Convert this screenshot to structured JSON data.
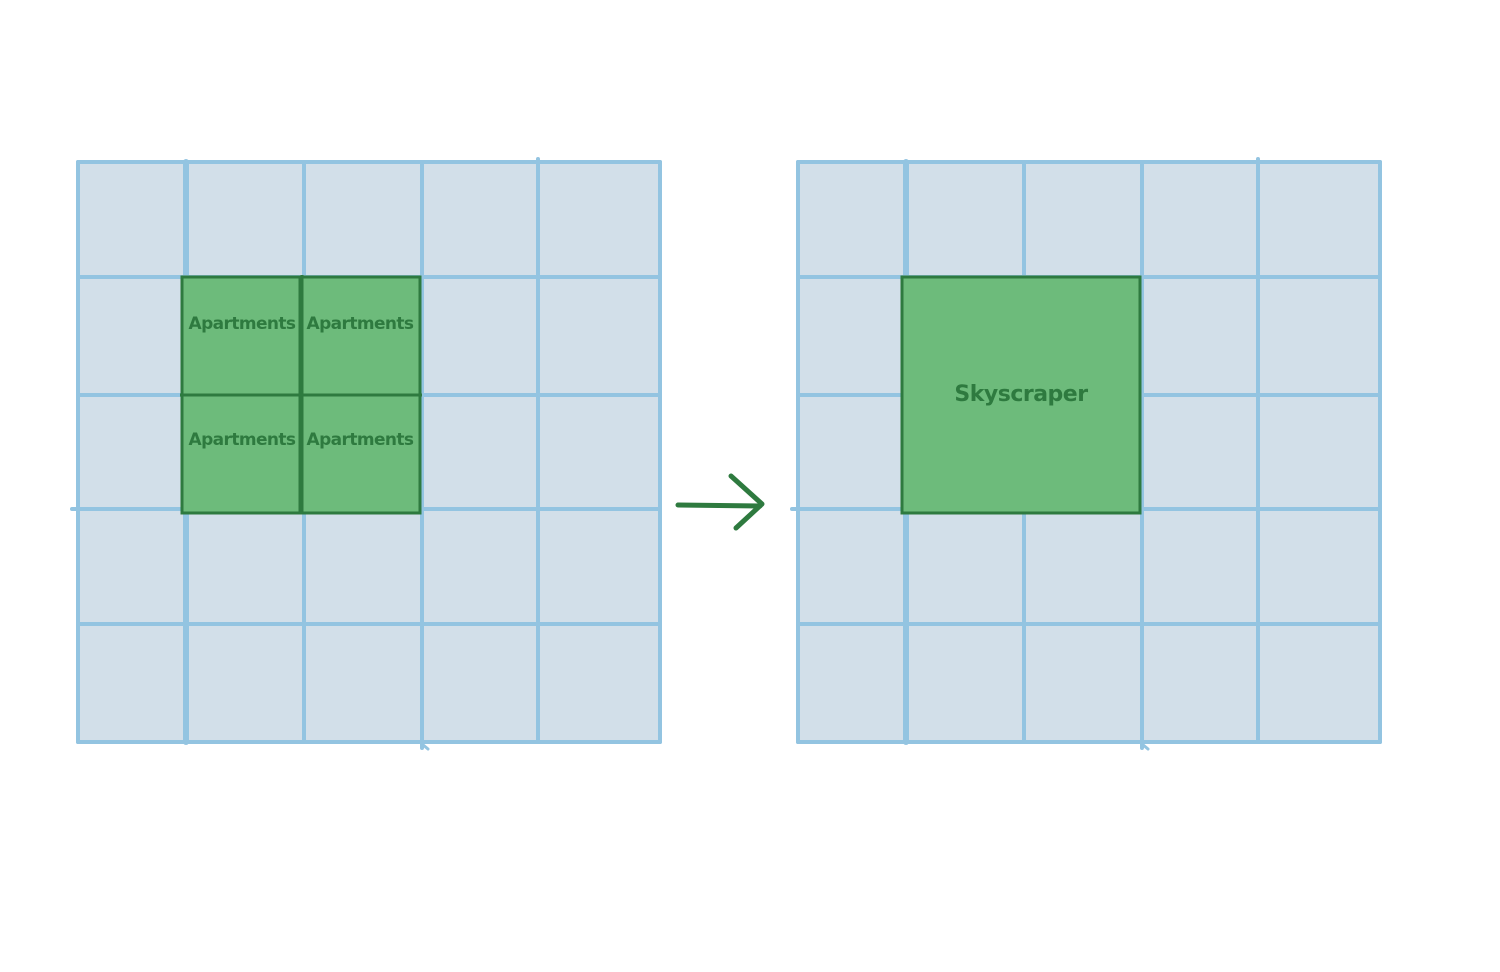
{
  "colors": {
    "grid_fill": "#d2dfe9",
    "grid_line": "#93c4e1",
    "building_fill": "#6dbb7b",
    "building_stroke": "#2e7a3f",
    "label": "#2e7a3f",
    "arrow": "#2e7a3f"
  },
  "before": {
    "grid": {
      "rows": 5,
      "cols": 5
    },
    "buildings": [
      {
        "label": "Apartments",
        "row": 1,
        "col": 1,
        "rowspan": 1,
        "colspan": 1
      },
      {
        "label": "Apartments",
        "row": 1,
        "col": 2,
        "rowspan": 1,
        "colspan": 1
      },
      {
        "label": "Apartments",
        "row": 2,
        "col": 1,
        "rowspan": 1,
        "colspan": 1
      },
      {
        "label": "Apartments",
        "row": 2,
        "col": 2,
        "rowspan": 1,
        "colspan": 1
      }
    ]
  },
  "arrow": {
    "icon": "right-arrow-icon"
  },
  "after": {
    "grid": {
      "rows": 5,
      "cols": 5
    },
    "buildings": [
      {
        "label": "Skyscraper",
        "row": 1,
        "col": 1,
        "rowspan": 2,
        "colspan": 2
      }
    ]
  }
}
